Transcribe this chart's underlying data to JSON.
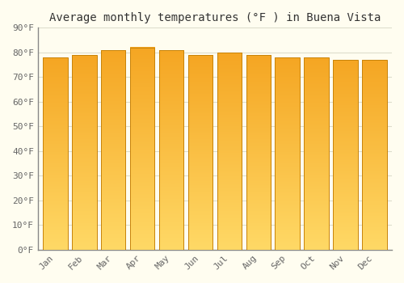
{
  "title": "Average monthly temperatures (°F ) in Buena Vista",
  "months": [
    "Jan",
    "Feb",
    "Mar",
    "Apr",
    "May",
    "Jun",
    "Jul",
    "Aug",
    "Sep",
    "Oct",
    "Nov",
    "Dec"
  ],
  "values": [
    78,
    79,
    81,
    82,
    81,
    79,
    80,
    79,
    78,
    78,
    77,
    77
  ],
  "bar_color_top": "#F5A623",
  "bar_color_bottom": "#FFD966",
  "bar_edge_color": "#C8830A",
  "ylim": [
    0,
    90
  ],
  "yticks": [
    0,
    10,
    20,
    30,
    40,
    50,
    60,
    70,
    80,
    90
  ],
  "ytick_labels": [
    "0°F",
    "10°F",
    "20°F",
    "30°F",
    "40°F",
    "50°F",
    "60°F",
    "70°F",
    "80°F",
    "90°F"
  ],
  "background_color": "#FFFDF0",
  "grid_color": "#DDDDCC",
  "title_fontsize": 10,
  "tick_fontsize": 8,
  "bar_width": 0.85
}
